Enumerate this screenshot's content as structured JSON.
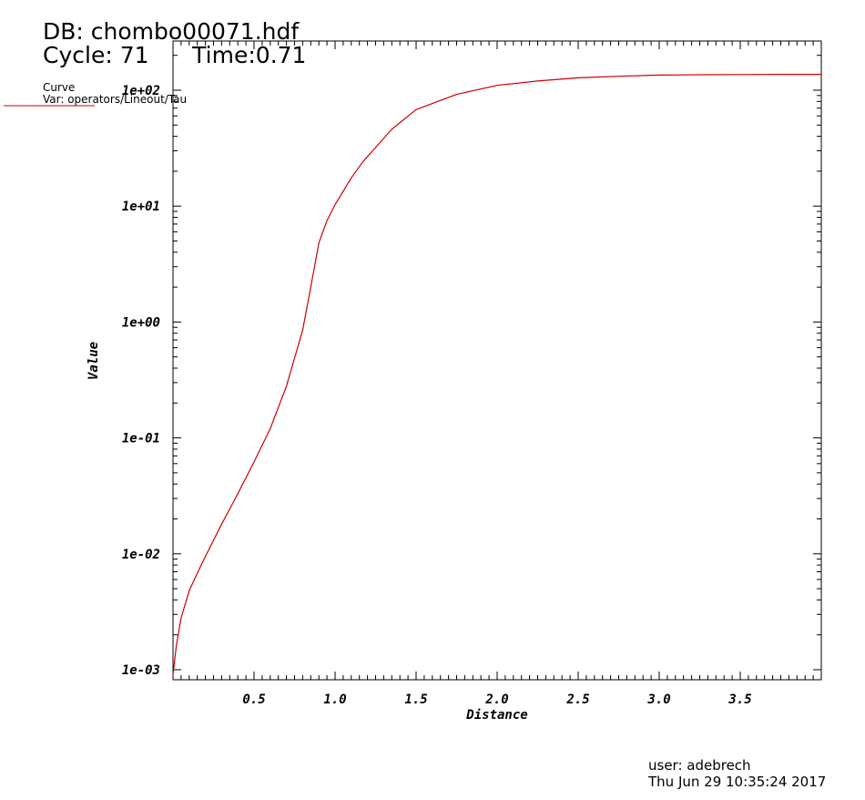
{
  "header": {
    "db_line": "DB: chombo00071.hdf",
    "cycle_line": "Cycle: 71      Time:0.71"
  },
  "legend": {
    "title": "Curve",
    "var_label": "Var: operators/Lineout/Tau",
    "line_color": "#cc0000"
  },
  "footer": {
    "user": "user: adebrech",
    "timestamp": "Thu Jun 29 10:35:24 2017"
  },
  "chart_data": {
    "type": "line",
    "xlabel": "Distance",
    "ylabel": "Value",
    "xlim": [
      0.0,
      4.0
    ],
    "ylim": [
      0.0008,
      120
    ],
    "y_scale": "log",
    "x_ticks": [
      0.5,
      1.0,
      1.5,
      2.0,
      2.5,
      3.0,
      3.5
    ],
    "x_tick_labels": [
      "0.5",
      "1.0",
      "1.5",
      "2.0",
      "2.5",
      "3.0",
      "3.5"
    ],
    "y_ticks": [
      0.001,
      0.01,
      0.1,
      1,
      10,
      100
    ],
    "y_tick_labels": [
      "1e-03",
      "1e-02",
      "1e-01",
      "1e+00",
      "1e+01",
      "1e+02"
    ],
    "grid": false,
    "series": [
      {
        "name": "operators/Lineout/Tau",
        "color": "#cc0000",
        "x": [
          0.0,
          0.02,
          0.05,
          0.1,
          0.15,
          0.2,
          0.3,
          0.4,
          0.5,
          0.6,
          0.7,
          0.8,
          0.85,
          0.9,
          0.95,
          1.0,
          1.1,
          1.17,
          1.25,
          1.35,
          1.5,
          1.75,
          2.0,
          2.25,
          2.5,
          2.75,
          3.0,
          3.25,
          3.5,
          3.75,
          4.0
        ],
        "y": [
          0.0009,
          0.0016,
          0.0028,
          0.0048,
          0.0068,
          0.0095,
          0.018,
          0.033,
          0.062,
          0.12,
          0.28,
          0.85,
          2.0,
          4.8,
          7.5,
          10.3,
          17.5,
          24,
          32,
          46,
          68,
          92,
          110,
          120,
          128,
          132,
          135,
          136,
          136.5,
          137,
          137
        ]
      }
    ]
  }
}
